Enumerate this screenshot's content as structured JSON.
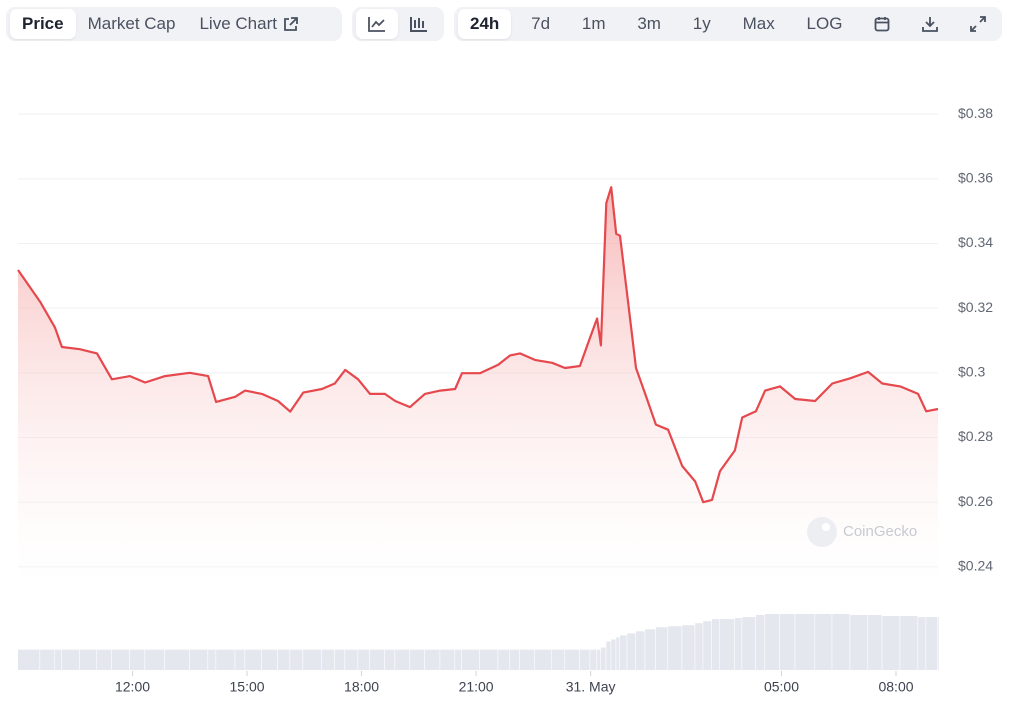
{
  "toolbar": {
    "views": [
      "Price",
      "Market Cap",
      "Live Chart"
    ],
    "ranges": [
      "24h",
      "7d",
      "1m",
      "3m",
      "1y",
      "Max",
      "LOG"
    ]
  },
  "watermark": "CoinGecko",
  "chart_data": {
    "type": "area",
    "color": "#e5484d",
    "grid": true,
    "x": [
      9.0,
      9.58,
      9.97,
      10.15,
      10.62,
      11.07,
      11.46,
      11.93,
      12.33,
      12.85,
      13.5,
      13.98,
      14.19,
      14.69,
      14.95,
      15.39,
      15.81,
      16.13,
      16.47,
      16.96,
      17.3,
      17.57,
      17.91,
      18.22,
      18.61,
      18.88,
      19.27,
      19.66,
      20.06,
      20.45,
      20.63,
      21.1,
      21.58,
      21.89,
      22.15,
      22.54,
      22.99,
      23.33,
      23.72,
      23.99,
      24.17,
      24.27,
      24.41,
      24.54,
      24.67,
      24.77,
      24.96,
      25.19,
      25.43,
      25.71,
      26.03,
      26.4,
      26.74,
      26.95,
      27.18,
      27.39,
      27.78,
      27.97,
      28.33,
      28.57,
      28.96,
      29.36,
      29.88,
      30.33,
      30.8,
      31.27,
      31.64,
      32.11,
      32.58,
      32.79,
      33.1
    ],
    "values": [
      0.3318,
      0.322,
      0.314,
      0.308,
      0.3073,
      0.306,
      0.298,
      0.299,
      0.297,
      0.299,
      0.3,
      0.299,
      0.291,
      0.2926,
      0.2945,
      0.2935,
      0.2913,
      0.288,
      0.2939,
      0.295,
      0.2967,
      0.3009,
      0.298,
      0.2935,
      0.2935,
      0.2913,
      0.2894,
      0.2935,
      0.2945,
      0.295,
      0.2999,
      0.2999,
      0.3025,
      0.3054,
      0.306,
      0.304,
      0.3031,
      0.3015,
      0.3021,
      0.311,
      0.3168,
      0.3085,
      0.3525,
      0.3574,
      0.343,
      0.3424,
      0.3239,
      0.3015,
      0.2935,
      0.284,
      0.2824,
      0.2712,
      0.2664,
      0.26,
      0.2607,
      0.2696,
      0.276,
      0.2862,
      0.2881,
      0.2945,
      0.2958,
      0.2919,
      0.2913,
      0.2967,
      0.2983,
      0.3003,
      0.2967,
      0.2958,
      0.2935,
      0.2881,
      0.2888
    ],
    "volume": [
      20,
      20,
      20,
      20,
      20,
      20,
      20,
      20,
      20,
      20,
      20,
      20,
      20,
      20,
      20,
      20,
      20,
      20,
      20,
      20,
      20,
      20,
      20,
      20,
      20,
      20,
      20,
      20,
      20,
      20,
      20,
      20,
      20,
      20,
      20,
      20,
      20,
      20,
      20,
      20,
      20,
      22,
      28,
      30,
      32,
      34,
      36,
      38,
      40,
      42,
      43,
      44,
      46,
      48,
      50,
      50,
      51,
      52,
      54,
      55,
      55,
      55,
      55,
      55,
      54,
      54,
      53,
      53,
      52,
      52,
      52
    ],
    "volume_color": "#e4e7ee",
    "xlim": [
      9.0,
      33.1
    ],
    "xticks": [
      {
        "value": 12,
        "label": "12:00"
      },
      {
        "value": 15,
        "label": "15:00"
      },
      {
        "value": 18,
        "label": "18:00"
      },
      {
        "value": 21,
        "label": "21:00"
      },
      {
        "value": 24,
        "label": "31. May"
      },
      {
        "value": 29,
        "label": "05:00"
      },
      {
        "value": 32,
        "label": "08:00"
      }
    ],
    "ylim": [
      0.235,
      0.385
    ],
    "yticks": [
      {
        "value": 0.24,
        "label": "$0.24"
      },
      {
        "value": 0.26,
        "label": "$0.26"
      },
      {
        "value": 0.28,
        "label": "$0.28"
      },
      {
        "value": 0.3,
        "label": "$0.3"
      },
      {
        "value": 0.32,
        "label": "$0.32"
      },
      {
        "value": 0.34,
        "label": "$0.34"
      },
      {
        "value": 0.36,
        "label": "$0.36"
      },
      {
        "value": 0.38,
        "label": "$0.38"
      }
    ]
  }
}
